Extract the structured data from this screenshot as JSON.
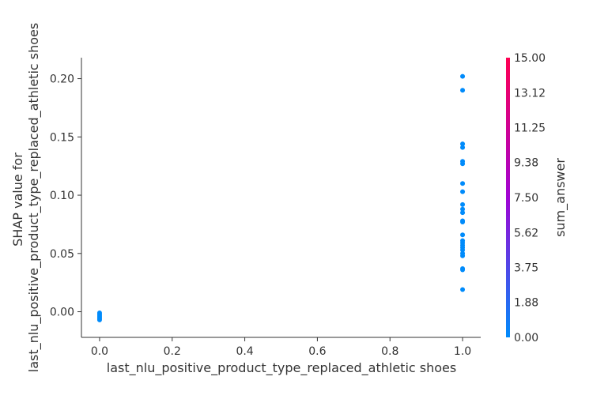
{
  "chart_data": {
    "type": "scatter",
    "title": "",
    "xlabel": "last_nlu_positive_product_type_replaced_athletic shoes",
    "ylabel_lines": [
      "SHAP value for",
      "last_nlu_positive_product_type_replaced_athletic shoes"
    ],
    "xlim": [
      -0.05,
      1.05
    ],
    "ylim": [
      -0.022,
      0.218
    ],
    "x_ticks": [
      0.0,
      0.2,
      0.4,
      0.6,
      0.8,
      1.0
    ],
    "x_tick_labels": [
      "0.0",
      "0.2",
      "0.4",
      "0.6",
      "0.8",
      "1.0"
    ],
    "y_ticks": [
      0.0,
      0.05,
      0.1,
      0.15,
      0.2
    ],
    "y_tick_labels": [
      "0.00",
      "0.05",
      "0.10",
      "0.15",
      "0.20"
    ],
    "points": [
      {
        "x": 0.0,
        "y": -0.001,
        "c": 0.0
      },
      {
        "x": 0.0,
        "y": -0.002,
        "c": 0.0
      },
      {
        "x": 0.0,
        "y": -0.003,
        "c": 0.0
      },
      {
        "x": 0.0,
        "y": -0.004,
        "c": 0.0
      },
      {
        "x": 0.0,
        "y": -0.005,
        "c": 0.0
      },
      {
        "x": 0.0,
        "y": -0.006,
        "c": 0.0
      },
      {
        "x": 0.0,
        "y": -0.007,
        "c": 0.0
      },
      {
        "x": 1.0,
        "y": 0.202,
        "c": 0.0
      },
      {
        "x": 1.0,
        "y": 0.19,
        "c": 0.0
      },
      {
        "x": 1.0,
        "y": 0.144,
        "c": 0.0
      },
      {
        "x": 1.0,
        "y": 0.141,
        "c": 0.0
      },
      {
        "x": 1.0,
        "y": 0.129,
        "c": 0.0
      },
      {
        "x": 1.0,
        "y": 0.127,
        "c": 0.0
      },
      {
        "x": 1.0,
        "y": 0.11,
        "c": 0.0
      },
      {
        "x": 1.0,
        "y": 0.103,
        "c": 0.0
      },
      {
        "x": 1.0,
        "y": 0.092,
        "c": 0.0
      },
      {
        "x": 1.0,
        "y": 0.088,
        "c": 0.0
      },
      {
        "x": 1.0,
        "y": 0.085,
        "c": 0.0
      },
      {
        "x": 1.0,
        "y": 0.078,
        "c": 0.0
      },
      {
        "x": 1.0,
        "y": 0.077,
        "c": 0.0
      },
      {
        "x": 1.0,
        "y": 0.066,
        "c": 0.0
      },
      {
        "x": 1.0,
        "y": 0.061,
        "c": 0.0
      },
      {
        "x": 1.0,
        "y": 0.059,
        "c": 0.0
      },
      {
        "x": 1.0,
        "y": 0.057,
        "c": 0.0
      },
      {
        "x": 1.0,
        "y": 0.055,
        "c": 0.0
      },
      {
        "x": 1.0,
        "y": 0.053,
        "c": 0.0
      },
      {
        "x": 1.0,
        "y": 0.05,
        "c": 0.0
      },
      {
        "x": 1.0,
        "y": 0.048,
        "c": 0.0
      },
      {
        "x": 1.0,
        "y": 0.037,
        "c": 0.0
      },
      {
        "x": 1.0,
        "y": 0.036,
        "c": 0.0
      },
      {
        "x": 1.0,
        "y": 0.019,
        "c": 0.0
      }
    ],
    "colorbar": {
      "label": "sum_answer",
      "min": 0.0,
      "max": 15.0,
      "ticks": [
        0.0,
        1.88,
        3.75,
        5.62,
        7.5,
        9.38,
        11.25,
        13.12,
        15.0
      ],
      "tick_labels": [
        "0.00",
        "1.88",
        "3.75",
        "5.62",
        "7.50",
        "9.38",
        "11.25",
        "13.12",
        "15.00"
      ],
      "color_low": "#008bfb",
      "color_mid": "#a004d4",
      "color_high": "#ff0052"
    },
    "grid": false,
    "legend": "none"
  }
}
